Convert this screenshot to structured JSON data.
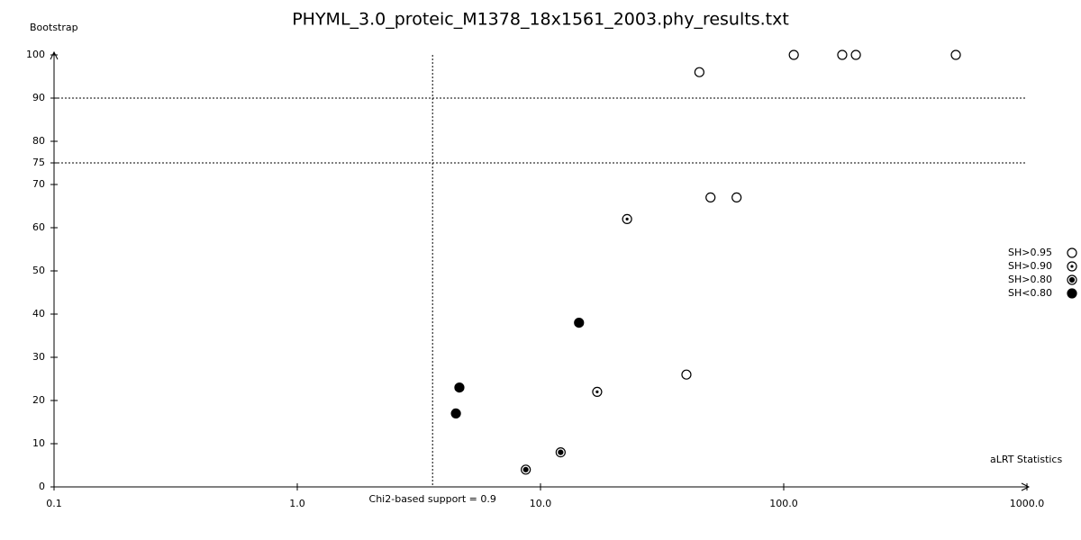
{
  "chart_data": {
    "type": "scatter",
    "title": "PHYML_3.0_proteic_M1378_18x1561_2003.phy_results.txt",
    "y_label": "Bootstrap",
    "x_label": "aLRT Statistics",
    "x_log": true,
    "xlim": [
      0.1,
      1000
    ],
    "xticks": [
      0.1,
      {
        "value": 1,
        "label": "1.0"
      },
      {
        "value": 10,
        "label": "10.0"
      },
      {
        "value": 100,
        "label": "100.0"
      },
      {
        "value": 1000,
        "label": "1000.0"
      }
    ],
    "ylim": [
      0,
      100
    ],
    "yticks": [
      0,
      10,
      20,
      30,
      40,
      50,
      60,
      70,
      75,
      80,
      90,
      100
    ],
    "hlines": [
      75,
      90
    ],
    "vline": {
      "value": 3.6,
      "label": "Chi2-based support = 0.9"
    },
    "legend": "right",
    "series": [
      {
        "name": "SH>0.95",
        "color": "#000000",
        "marker": "open",
        "x": [
          110,
          174,
          198,
          510,
          45,
          50,
          64,
          39.8
        ],
        "values": [
          100,
          100,
          100,
          100,
          96,
          67,
          67,
          26
        ]
      },
      {
        "name": "SH>0.90",
        "color": "#000000",
        "marker": "dot",
        "x": [
          22.7,
          17.1
        ],
        "values": [
          62,
          22
        ]
      },
      {
        "name": "SH>0.80",
        "color": "#000000",
        "marker": "ringdot",
        "x": [
          12.1,
          8.7
        ],
        "values": [
          8,
          4
        ]
      },
      {
        "name": "SH<0.80",
        "color": "#000000",
        "marker": "filled",
        "x": [
          14.4,
          4.64,
          4.49
        ],
        "values": [
          38,
          23,
          17
        ]
      }
    ]
  }
}
